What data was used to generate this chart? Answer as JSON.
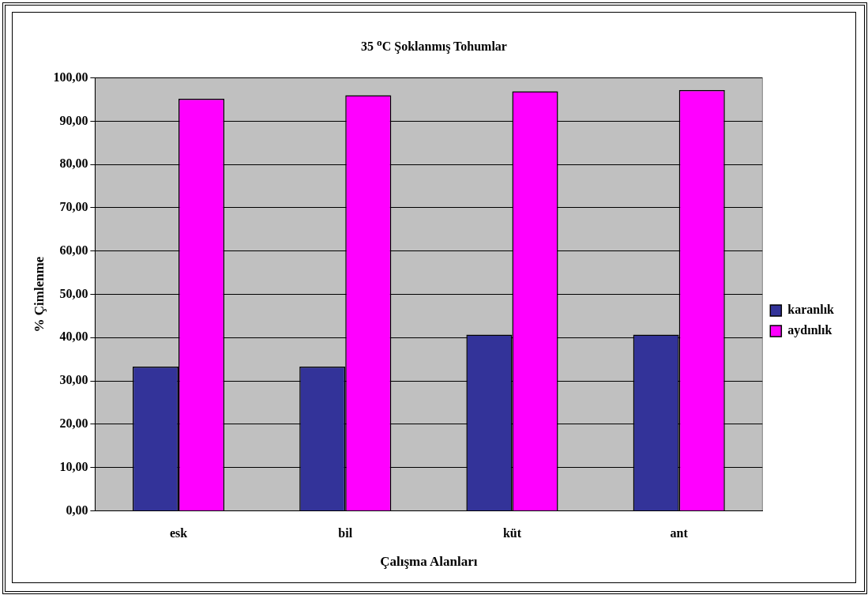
{
  "chart_data": {
    "type": "bar",
    "title": "35 $^{o}$C Şoklanmış Tohumlar",
    "xlabel": "Çalışma Alanları",
    "ylabel": "% Çimlenme",
    "categories": [
      "esk",
      "bil",
      "küt",
      "ant"
    ],
    "series": [
      {
        "name": "karanlık",
        "color": "#333399",
        "values": [
          33.3,
          33.3,
          40.7,
          40.7
        ]
      },
      {
        "name": "aydınlık",
        "color": "#ff00ff",
        "values": [
          95.2,
          96.0,
          96.9,
          97.2
        ]
      }
    ],
    "ylim": [
      0,
      100
    ],
    "yticks": [
      {
        "value": 0,
        "label": "0,00"
      },
      {
        "value": 10,
        "label": "10,00"
      },
      {
        "value": 20,
        "label": "20,00"
      },
      {
        "value": 30,
        "label": "30,00"
      },
      {
        "value": 40,
        "label": "40,00"
      },
      {
        "value": 50,
        "label": "50,00"
      },
      {
        "value": 60,
        "label": "60,00"
      },
      {
        "value": 70,
        "label": "70,00"
      },
      {
        "value": 80,
        "label": "80,00"
      },
      {
        "value": 90,
        "label": "90,00"
      },
      {
        "value": 100,
        "label": "100,00"
      }
    ],
    "grid": "y",
    "legend": "right"
  }
}
